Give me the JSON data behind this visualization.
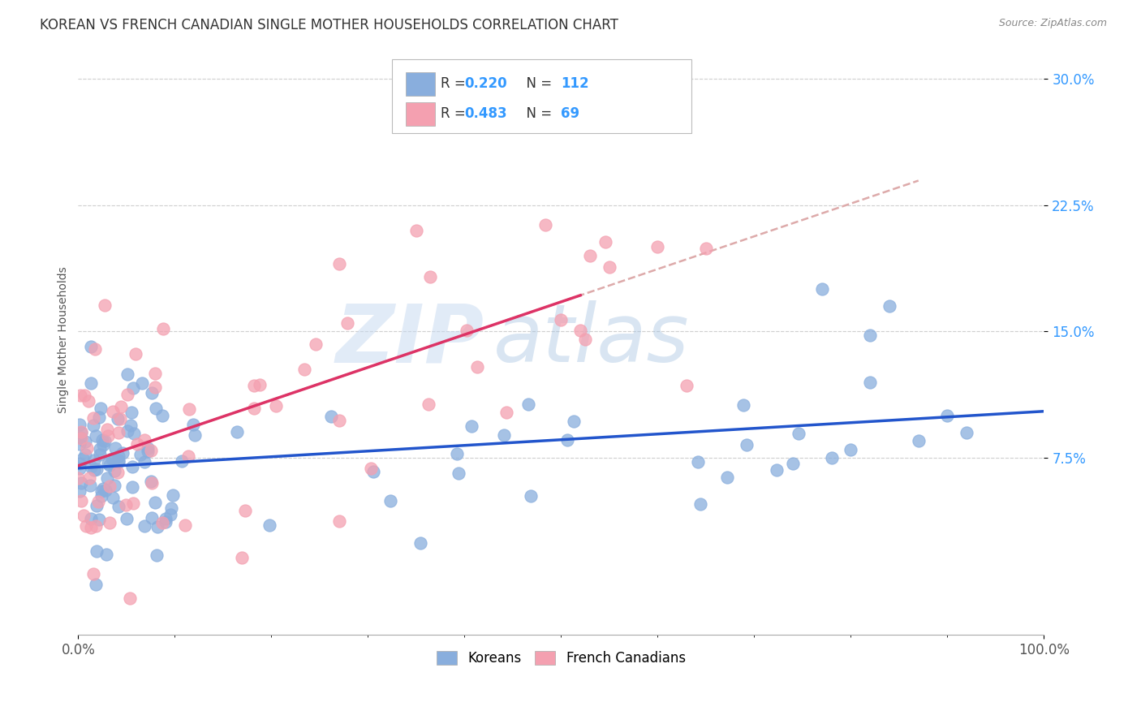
{
  "title": "KOREAN VS FRENCH CANADIAN SINGLE MOTHER HOUSEHOLDS CORRELATION CHART",
  "source": "Source: ZipAtlas.com",
  "ylabel": "Single Mother Households",
  "xlim": [
    0,
    1.0
  ],
  "ylim": [
    -0.03,
    0.32
  ],
  "yticks": [
    0.075,
    0.15,
    0.225,
    0.3
  ],
  "ytick_labels": [
    "7.5%",
    "15.0%",
    "22.5%",
    "30.0%"
  ],
  "xtick_labels": [
    "0.0%",
    "100.0%"
  ],
  "xticks": [
    0.0,
    1.0
  ],
  "korean_color": "#89AEDD",
  "french_color": "#F4A0B0",
  "korean_line_color": "#2255CC",
  "french_line_color": "#DD3366",
  "dashed_line_color": "#DDAAAA",
  "korean_R": 0.22,
  "korean_N": 112,
  "french_R": 0.483,
  "french_N": 69,
  "legend_labels": [
    "Koreans",
    "French Canadians"
  ],
  "title_fontsize": 12,
  "axis_label_fontsize": 10,
  "tick_fontsize": 12,
  "watermark_text": "ZIP",
  "watermark_text2": "atlas",
  "background_color": "#ffffff",
  "grid_color": "#cccccc"
}
